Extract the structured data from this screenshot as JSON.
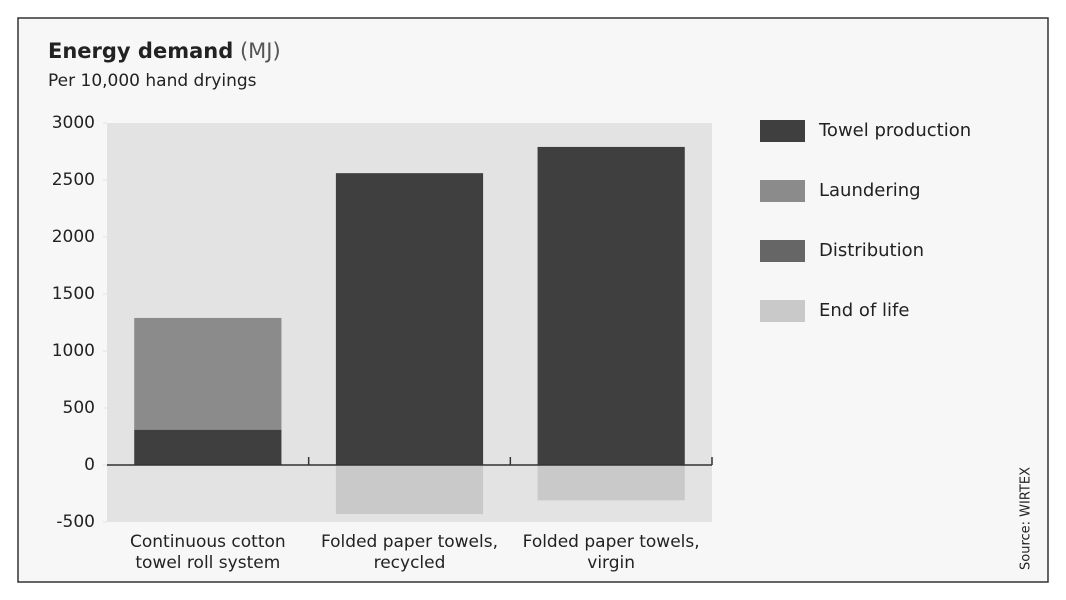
{
  "chart_data": {
    "type": "stacked_bar",
    "title": "Energy demand",
    "title_unit": "(MJ)",
    "subtitle": "Per 10,000 hand dryings",
    "source": "Source: WIRTEX",
    "categories": [
      "Continuous cotton towel roll system",
      "Folded paper towels, recycled",
      "Folded paper towels, virgin"
    ],
    "series": [
      {
        "name": "Towel production",
        "color": "#3f3f3f",
        "values": [
          310,
          2560,
          2790
        ]
      },
      {
        "name": "Laundering",
        "color": "#8b8b8b",
        "values": [
          980,
          0,
          0
        ]
      },
      {
        "name": "Distribution",
        "color": "#666666",
        "values": [
          0,
          0,
          0
        ]
      },
      {
        "name": "End of life",
        "color": "#c9c9c9",
        "values": [
          0,
          -430,
          -310
        ]
      }
    ],
    "ylim": [
      -500,
      3000
    ],
    "yticks": [
      -500,
      0,
      500,
      1000,
      1500,
      2000,
      2500,
      3000
    ],
    "legend": "right"
  }
}
